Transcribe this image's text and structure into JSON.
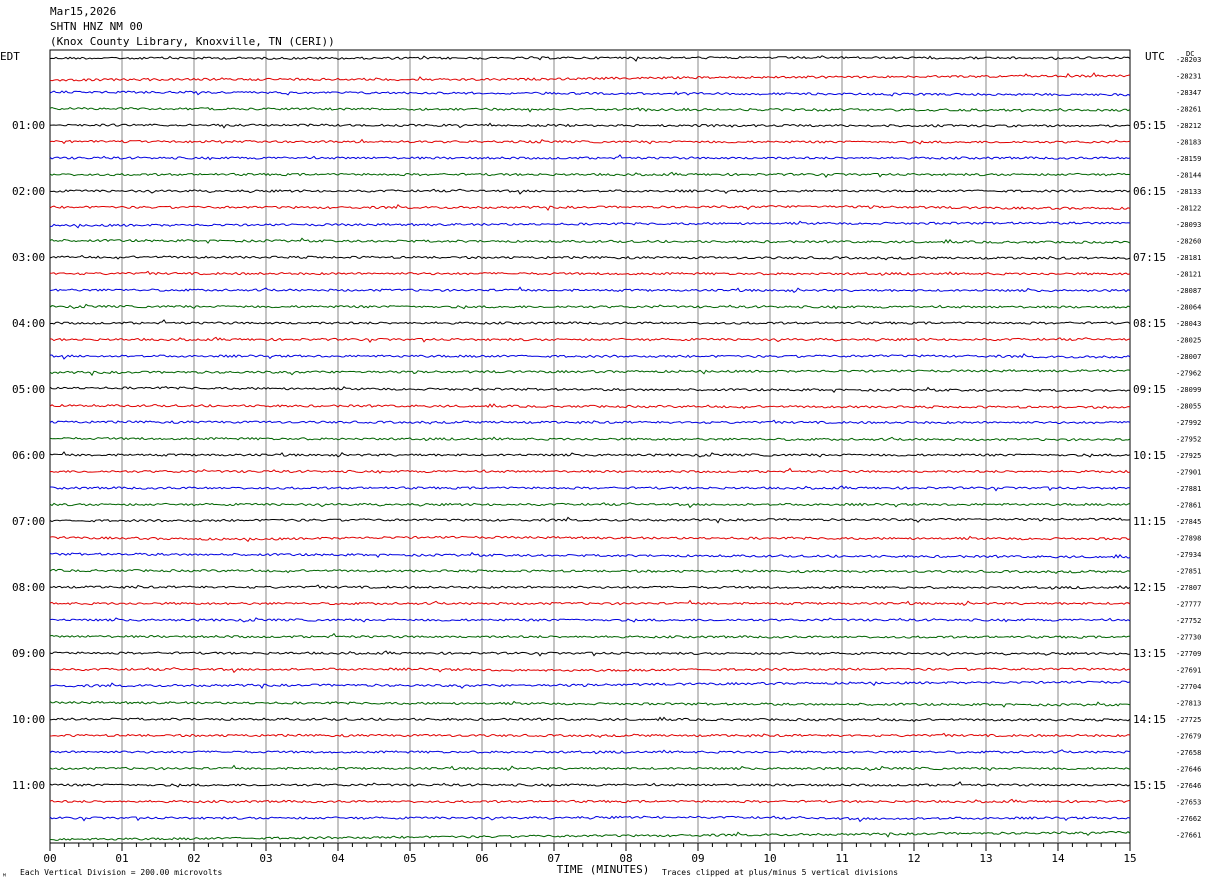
{
  "header": {
    "date": "Mar15,2026",
    "station": "SHTN HNZ NM 00",
    "location": "(Knox County Library, Knoxville, TN (CERI))"
  },
  "left_zone": "EDT",
  "right_zone": "UTC",
  "dc_label": "DC",
  "footer": {
    "scale": "Each Vertical Division =  200.00 microvolts",
    "clip": "Traces clipped at plus/minus 5 vertical divisions",
    "corner_mark": "ᴹ"
  },
  "chart_data": {
    "type": "line",
    "title": "",
    "xlabel": "TIME (MINUTES)",
    "ylabel": "",
    "xlim": [
      0,
      15
    ],
    "x_ticks": [
      "00",
      "01",
      "02",
      "03",
      "04",
      "05",
      "06",
      "07",
      "08",
      "09",
      "10",
      "11",
      "12",
      "13",
      "14",
      "15"
    ],
    "trace_colors": [
      "#000000",
      "#e00000",
      "#0000e0",
      "#006400"
    ],
    "hour_labels_left": [
      "01:00",
      "02:00",
      "03:00",
      "04:00",
      "05:00",
      "06:00",
      "07:00",
      "08:00",
      "09:00",
      "10:00",
      "11:00"
    ],
    "hour_labels_right": [
      "05:15",
      "06:15",
      "07:15",
      "08:15",
      "09:15",
      "10:15",
      "11:15",
      "12:15",
      "13:15",
      "14:15",
      "15:15"
    ],
    "dc_offsets": [
      "-28203",
      "-28231",
      "-28347",
      "-28261",
      "-28212",
      "-28183",
      "-28159",
      "-28144",
      "-28133",
      "-28122",
      "-28093",
      "-28260",
      "-28181",
      "-28121",
      "-28087",
      "-28064",
      "-28043",
      "-28025",
      "-28007",
      "-27962",
      "-28099",
      "-28055",
      "-27992",
      "-27952",
      "-27925",
      "-27901",
      "-27881",
      "-27861",
      "-27845",
      "-27898",
      "-27934",
      "-27851",
      "-27807",
      "-27777",
      "-27752",
      "-27730",
      "-27709",
      "-27691",
      "-27704",
      "-27813",
      "-27725",
      "-27679",
      "-27658",
      "-27646",
      "-27646",
      "-27653",
      "-27662",
      "-27661"
    ],
    "traces": [
      {
        "start": -3,
        "end": -5,
        "bumps": [
          [
            4.5,
            2.5,
            1.0
          ],
          [
            13.5,
            1.5,
            1.5
          ]
        ]
      },
      {
        "start": 15,
        "end": 1,
        "bumps": [
          [
            6.0,
            2.0,
            4.0
          ]
        ]
      },
      {
        "start": 0,
        "end": 9,
        "bumps": []
      },
      {
        "start": 0,
        "end": 6,
        "bumps": []
      },
      {
        "start": 0,
        "end": 3,
        "bumps": []
      },
      {
        "start": 0,
        "end": 2,
        "bumps": []
      },
      {
        "start": 0,
        "end": 0,
        "bumps": []
      },
      {
        "start": 0,
        "end": 0,
        "bumps": []
      },
      {
        "start": 0,
        "end": 0,
        "bumps": []
      },
      {
        "start": -1,
        "end": 3,
        "bumps": [
          [
            9.5,
            3.0,
            -3.0
          ],
          [
            11.0,
            1.5,
            -2.5
          ]
        ]
      },
      {
        "start": 5,
        "end": -4,
        "bumps": [
          [
            9.5,
            2.0,
            -1.0
          ]
        ]
      },
      {
        "start": 0,
        "end": 6,
        "bumps": []
      },
      {
        "start": 0,
        "end": 4,
        "bumps": []
      },
      {
        "start": 0,
        "end": 1,
        "bumps": []
      },
      {
        "start": 0,
        "end": 2,
        "bumps": []
      },
      {
        "start": 0,
        "end": 2,
        "bumps": []
      },
      {
        "start": 0,
        "end": 0,
        "bumps": []
      },
      {
        "start": 0,
        "end": 0,
        "bumps": []
      },
      {
        "start": 0,
        "end": 2,
        "bumps": [
          [
            12.5,
            1.5,
            -2.0
          ],
          [
            14.0,
            1.0,
            2.0
          ]
        ]
      },
      {
        "start": 0,
        "end": -6,
        "bumps": []
      },
      {
        "start": -2,
        "end": 5,
        "bumps": [
          [
            1.5,
            2.0,
            -2.0
          ]
        ]
      },
      {
        "start": 0,
        "end": 6,
        "bumps": []
      },
      {
        "start": 0,
        "end": 2,
        "bumps": []
      },
      {
        "start": 0,
        "end": 4,
        "bumps": []
      },
      {
        "start": 0,
        "end": 0,
        "bumps": []
      },
      {
        "start": 0,
        "end": 0,
        "bumps": []
      },
      {
        "start": 0,
        "end": 0,
        "bumps": []
      },
      {
        "start": 0,
        "end": 0,
        "bumps": []
      },
      {
        "start": 0,
        "end": -6,
        "bumps": [
          [
            1.0,
            0.5,
            -1.0
          ],
          [
            4.0,
            2.0,
            -1.5
          ]
        ]
      },
      {
        "start": 0,
        "end": 4,
        "bumps": [
          [
            2.5,
            1.5,
            5.0
          ],
          [
            6.0,
            2.0,
            -2.0
          ]
        ]
      },
      {
        "start": 0,
        "end": 10,
        "bumps": []
      },
      {
        "start": 0,
        "end": 4,
        "bumps": []
      },
      {
        "start": 0,
        "end": 2,
        "bumps": []
      },
      {
        "start": 0,
        "end": 0,
        "bumps": []
      },
      {
        "start": 0,
        "end": 0,
        "bumps": []
      },
      {
        "start": 0,
        "end": 2,
        "bumps": []
      },
      {
        "start": 0,
        "end": 2,
        "bumps": []
      },
      {
        "start": 0,
        "end": -1,
        "bumps": [
          [
            5.0,
            1.5,
            -2.0
          ],
          [
            7.0,
            2.0,
            4.0
          ]
        ]
      },
      {
        "start": 0,
        "end": -13,
        "bumps": [
          [
            6.5,
            2.0,
            4.0
          ]
        ]
      },
      {
        "start": 0,
        "end": 8,
        "bumps": []
      },
      {
        "start": 0,
        "end": 3,
        "bumps": []
      },
      {
        "start": 0,
        "end": 0,
        "bumps": []
      },
      {
        "start": 0,
        "end": 0,
        "bumps": []
      },
      {
        "start": 0,
        "end": 0,
        "bumps": []
      },
      {
        "start": 0,
        "end": 0,
        "bumps": []
      },
      {
        "start": 0,
        "end": 0,
        "bumps": []
      },
      {
        "start": 0,
        "end": 0,
        "bumps": [
          [
            9.0,
            2.0,
            -3.0
          ],
          [
            11.0,
            1.5,
            3.0
          ]
        ]
      },
      {
        "start": 17,
        "end": -7,
        "bumps": []
      }
    ]
  }
}
